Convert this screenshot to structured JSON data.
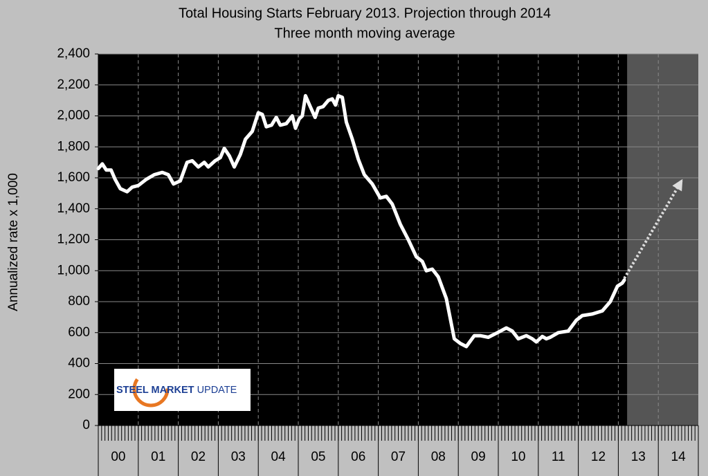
{
  "chart_data": {
    "type": "line",
    "title": "Total Housing Starts February 2013.  Projection through 2014",
    "subtitle": "Three month moving average",
    "y_label": "Annualized rate x 1,000",
    "logo_text": [
      "STEEL",
      "MARKET",
      "UPDATE"
    ],
    "xlim": [
      0,
      15
    ],
    "xticks": [
      {
        "value": 0.5,
        "label": "00"
      },
      {
        "value": 1.5,
        "label": "01"
      },
      {
        "value": 2.5,
        "label": "02"
      },
      {
        "value": 3.5,
        "label": "03"
      },
      {
        "value": 4.5,
        "label": "04"
      },
      {
        "value": 5.5,
        "label": "05"
      },
      {
        "value": 6.5,
        "label": "06"
      },
      {
        "value": 7.5,
        "label": "07"
      },
      {
        "value": 8.5,
        "label": "08"
      },
      {
        "value": 9.5,
        "label": "09"
      },
      {
        "value": 10.5,
        "label": "10"
      },
      {
        "value": 11.5,
        "label": "11"
      },
      {
        "value": 12.5,
        "label": "12"
      },
      {
        "value": 13.5,
        "label": "13"
      },
      {
        "value": 14.5,
        "label": "14"
      }
    ],
    "ylim": [
      0,
      2400
    ],
    "yticks": [
      {
        "value": 0,
        "label": "0"
      },
      {
        "value": 200,
        "label": "200"
      },
      {
        "value": 400,
        "label": "400"
      },
      {
        "value": 600,
        "label": "600"
      },
      {
        "value": 800,
        "label": "800"
      },
      {
        "value": 1000,
        "label": "1,000"
      },
      {
        "value": 1200,
        "label": "1,200"
      },
      {
        "value": 1400,
        "label": "1,400"
      },
      {
        "value": 1600,
        "label": "1,600"
      },
      {
        "value": 1800,
        "label": "1,800"
      },
      {
        "value": 2000,
        "label": "2,000"
      },
      {
        "value": 2200,
        "label": "2,200"
      },
      {
        "value": 2400,
        "label": "2,400"
      }
    ],
    "grid": true,
    "shaded_xrange": [
      13.22,
      15
    ],
    "series": [
      {
        "color": "#ffffff",
        "x": [
          0,
          0.1,
          0.2,
          0.32,
          0.42,
          0.55,
          0.72,
          0.85,
          1.0,
          1.2,
          1.4,
          1.6,
          1.75,
          1.88,
          2.05,
          2.22,
          2.35,
          2.5,
          2.65,
          2.75,
          2.92,
          3.05,
          3.15,
          3.28,
          3.4,
          3.55,
          3.68,
          3.85,
          4.0,
          4.1,
          4.2,
          4.33,
          4.45,
          4.55,
          4.7,
          4.85,
          4.93,
          5.02,
          5.1,
          5.18,
          5.3,
          5.42,
          5.5,
          5.62,
          5.75,
          5.85,
          5.93,
          6.0,
          6.1,
          6.2,
          6.35,
          6.5,
          6.65,
          6.85,
          7.05,
          7.2,
          7.35,
          7.55,
          7.75,
          7.95,
          8.1,
          8.2,
          8.35,
          8.5,
          8.7,
          8.9,
          9.05,
          9.2,
          9.4,
          9.55,
          9.75,
          9.98,
          10.2,
          10.35,
          10.5,
          10.7,
          10.85,
          10.95,
          11.1,
          11.2,
          11.3,
          11.5,
          11.75,
          11.95,
          12.1,
          12.35,
          12.6,
          12.8,
          12.98,
          13.1,
          13.15
        ],
        "values": [
          1660,
          1690,
          1650,
          1650,
          1590,
          1530,
          1510,
          1540,
          1550,
          1590,
          1620,
          1635,
          1620,
          1560,
          1580,
          1700,
          1710,
          1670,
          1700,
          1670,
          1710,
          1730,
          1790,
          1740,
          1670,
          1750,
          1850,
          1900,
          2020,
          2010,
          1930,
          1940,
          1990,
          1940,
          1950,
          2000,
          1920,
          1980,
          2000,
          2130,
          2060,
          1990,
          2050,
          2060,
          2100,
          2110,
          2070,
          2130,
          2120,
          1960,
          1850,
          1720,
          1620,
          1560,
          1470,
          1480,
          1430,
          1300,
          1200,
          1090,
          1060,
          1000,
          1010,
          960,
          820,
          560,
          530,
          510,
          580,
          580,
          570,
          600,
          630,
          610,
          560,
          580,
          560,
          540,
          575,
          560,
          570,
          600,
          610,
          680,
          710,
          720,
          740,
          800,
          900,
          920,
          940
        ]
      },
      {
        "color": "#dddddd",
        "dashed": true,
        "arrow": true,
        "x": [
          13.15,
          14.58
        ],
        "values": [
          950,
          1580
        ]
      }
    ]
  }
}
